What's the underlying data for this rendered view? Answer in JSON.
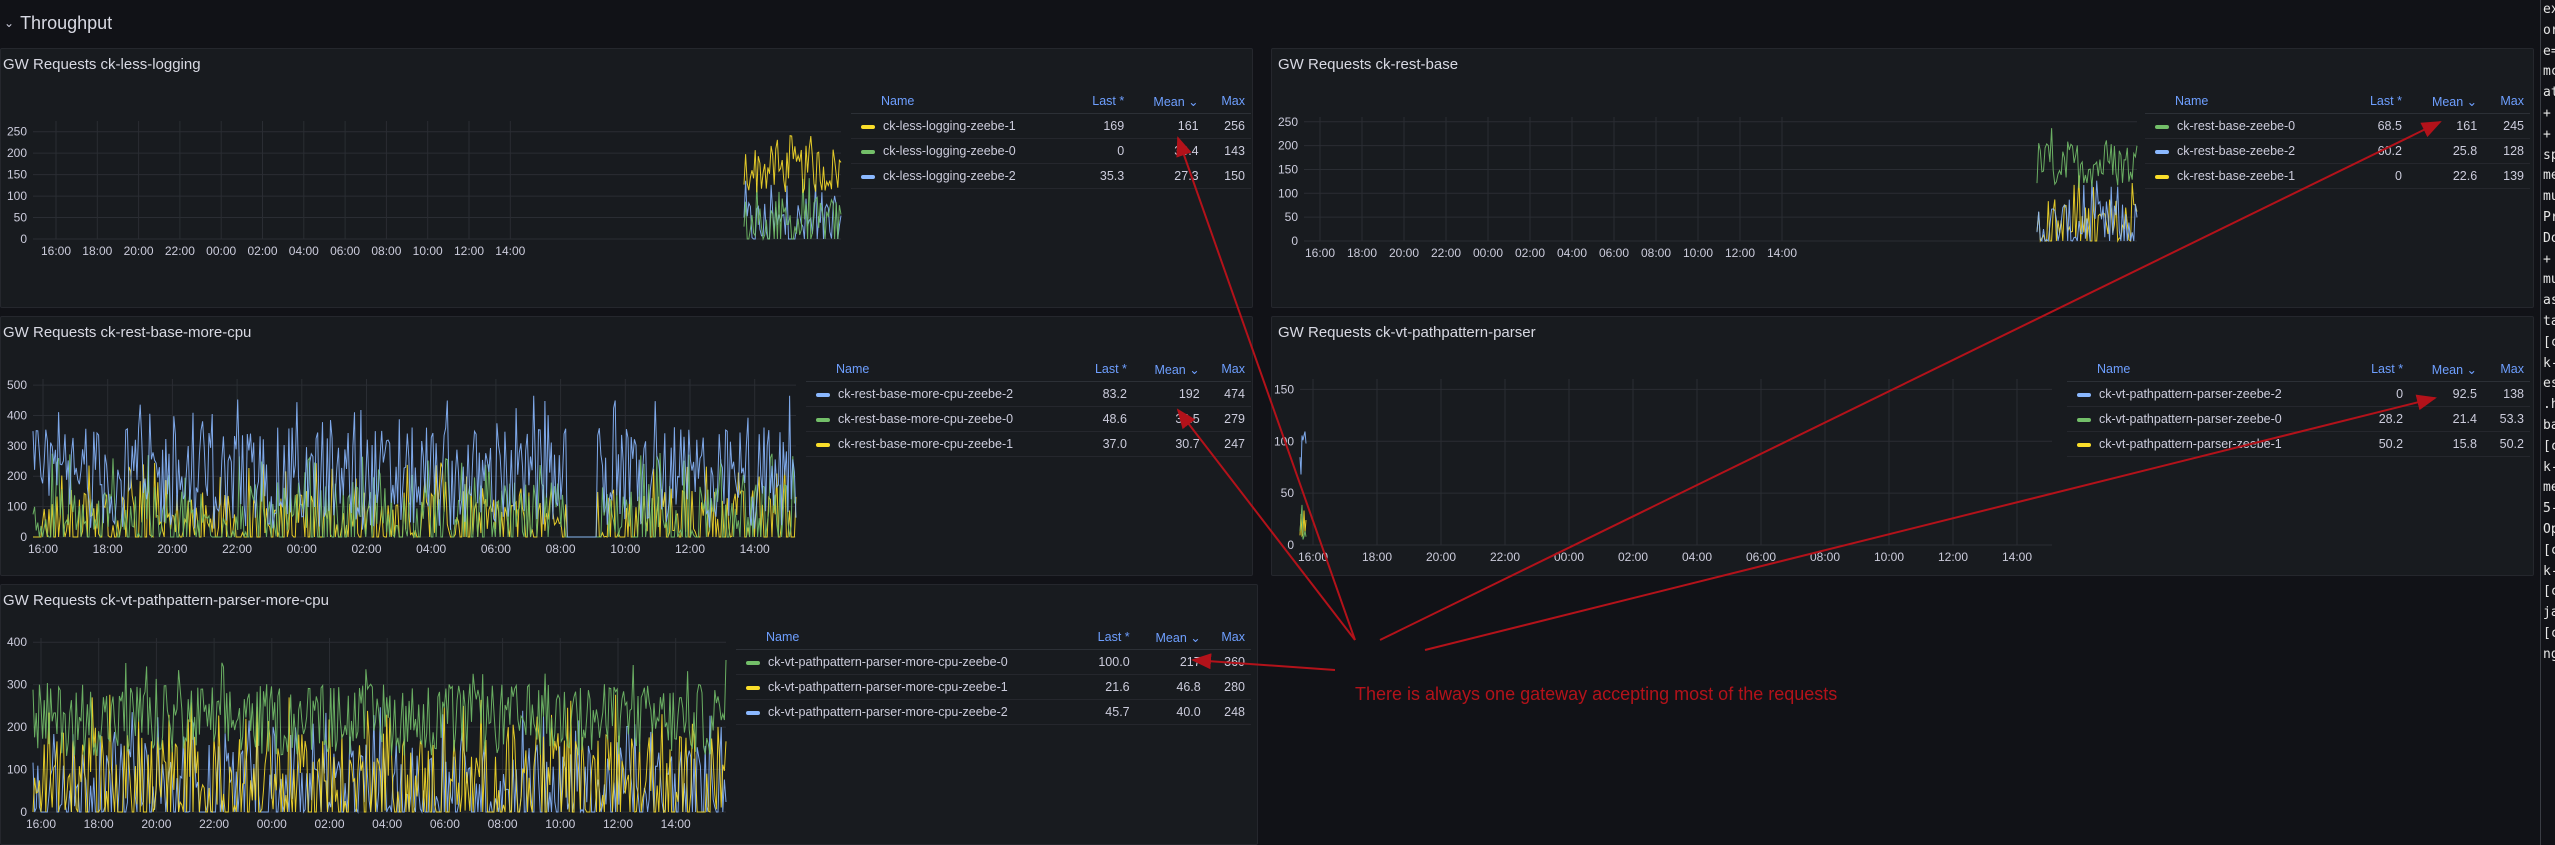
{
  "row": {
    "chevron": "⌄",
    "title": "Throughput"
  },
  "panels": [
    {
      "id": "p1",
      "title": "GW Requests ck-less-logging",
      "yTicks": [
        "250",
        "200",
        "150",
        "100",
        "50",
        "0"
      ],
      "yMax": 275,
      "xTicks": [
        "16:00",
        "18:00",
        "20:00",
        "22:00",
        "00:00",
        "02:00",
        "04:00",
        "06:00",
        "08:00",
        "10:00",
        "12:00",
        "14:00"
      ],
      "legendHeaders": [
        "Name",
        "Last *",
        "Mean ⌄",
        "Max"
      ],
      "legend": [
        {
          "name": "ck-less-logging-zeebe-1",
          "last": "169",
          "mean": "161",
          "max": "256",
          "color": "yellow"
        },
        {
          "name": "ck-less-logging-zeebe-0",
          "last": "0",
          "mean": "30.4",
          "max": "143",
          "color": "green"
        },
        {
          "name": "ck-less-logging-zeebe-2",
          "last": "35.3",
          "mean": "27.3",
          "max": "150",
          "color": "blue"
        }
      ]
    },
    {
      "id": "p2",
      "title": "GW Requests ck-rest-base",
      "yTicks": [
        "250",
        "200",
        "150",
        "100",
        "50",
        "0"
      ],
      "yMax": 260,
      "xTicks": [
        "16:00",
        "18:00",
        "20:00",
        "22:00",
        "00:00",
        "02:00",
        "04:00",
        "06:00",
        "08:00",
        "10:00",
        "12:00",
        "14:00"
      ],
      "legendHeaders": [
        "Name",
        "Last *",
        "Mean ⌄",
        "Max"
      ],
      "legend": [
        {
          "name": "ck-rest-base-zeebe-0",
          "last": "68.5",
          "mean": "161",
          "max": "245",
          "color": "green"
        },
        {
          "name": "ck-rest-base-zeebe-2",
          "last": "60.2",
          "mean": "25.8",
          "max": "128",
          "color": "blue"
        },
        {
          "name": "ck-rest-base-zeebe-1",
          "last": "0",
          "mean": "22.6",
          "max": "139",
          "color": "yellow"
        }
      ]
    },
    {
      "id": "p3",
      "title": "GW Requests ck-rest-base-more-cpu",
      "yTicks": [
        "500",
        "400",
        "300",
        "200",
        "100",
        "0"
      ],
      "yMax": 520,
      "xTicks": [
        "16:00",
        "18:00",
        "20:00",
        "22:00",
        "00:00",
        "02:00",
        "04:00",
        "06:00",
        "08:00",
        "10:00",
        "12:00",
        "14:00"
      ],
      "legendHeaders": [
        "Name",
        "Last *",
        "Mean ⌄",
        "Max"
      ],
      "legend": [
        {
          "name": "ck-rest-base-more-cpu-zeebe-2",
          "last": "83.2",
          "mean": "192",
          "max": "474",
          "color": "blue"
        },
        {
          "name": "ck-rest-base-more-cpu-zeebe-0",
          "last": "48.6",
          "mean": "32.5",
          "max": "279",
          "color": "green"
        },
        {
          "name": "ck-rest-base-more-cpu-zeebe-1",
          "last": "37.0",
          "mean": "30.7",
          "max": "247",
          "color": "yellow"
        }
      ]
    },
    {
      "id": "p4",
      "title": "GW Requests ck-vt-pathpattern-parser",
      "yTicks": [
        "150",
        "100",
        "50",
        "0"
      ],
      "yMax": 160,
      "xTicks": [
        "16:00",
        "18:00",
        "20:00",
        "22:00",
        "00:00",
        "02:00",
        "04:00",
        "06:00",
        "08:00",
        "10:00",
        "12:00",
        "14:00"
      ],
      "legendHeaders": [
        "Name",
        "Last *",
        "Mean ⌄",
        "Max"
      ],
      "legend": [
        {
          "name": "ck-vt-pathpattern-parser-zeebe-2",
          "last": "0",
          "mean": "92.5",
          "max": "138",
          "color": "blue"
        },
        {
          "name": "ck-vt-pathpattern-parser-zeebe-0",
          "last": "28.2",
          "mean": "21.4",
          "max": "53.3",
          "color": "green"
        },
        {
          "name": "ck-vt-pathpattern-parser-zeebe-1",
          "last": "50.2",
          "mean": "15.8",
          "max": "50.2",
          "color": "yellow"
        }
      ]
    },
    {
      "id": "p5",
      "title": "GW Requests ck-vt-pathpattern-parser-more-cpu",
      "yTicks": [
        "400",
        "300",
        "200",
        "100",
        "0"
      ],
      "yMax": 410,
      "xTicks": [
        "16:00",
        "18:00",
        "20:00",
        "22:00",
        "00:00",
        "02:00",
        "04:00",
        "06:00",
        "08:00",
        "10:00",
        "12:00",
        "14:00"
      ],
      "legendHeaders": [
        "Name",
        "Last *",
        "Mean ⌄",
        "Max"
      ],
      "legend": [
        {
          "name": "ck-vt-pathpattern-parser-more-cpu-zeebe-0",
          "last": "100.0",
          "mean": "217",
          "max": "360",
          "color": "green"
        },
        {
          "name": "ck-vt-pathpattern-parser-more-cpu-zeebe-1",
          "last": "21.6",
          "mean": "46.8",
          "max": "280",
          "color": "yellow"
        },
        {
          "name": "ck-vt-pathpattern-parser-more-cpu-zeebe-2",
          "last": "45.7",
          "mean": "40.0",
          "max": "248",
          "color": "blue"
        }
      ]
    }
  ],
  "colors": {
    "green": "#73bf69",
    "yellow": "#fade2a",
    "blue": "#8ab8ff",
    "annotation": "#b3121a",
    "grid": "#2a2d33"
  },
  "annotation": {
    "text": "There is always one gateway accepting most of the requests"
  },
  "terminal_strip": [
    "ex",
    "or",
    "e=",
    "mc",
    "at",
    "+",
    "+",
    "sp",
    "me",
    "mu",
    "Pr",
    "Do",
    "+",
    "mu",
    "as",
    "ta",
    "[c",
    "k-",
    "es",
    ".h",
    "ba",
    "[c",
    "k-",
    "me",
    "5-",
    "Op",
    "[c",
    "k-",
    "[c",
    "ja",
    "[c",
    "ng"
  ]
}
